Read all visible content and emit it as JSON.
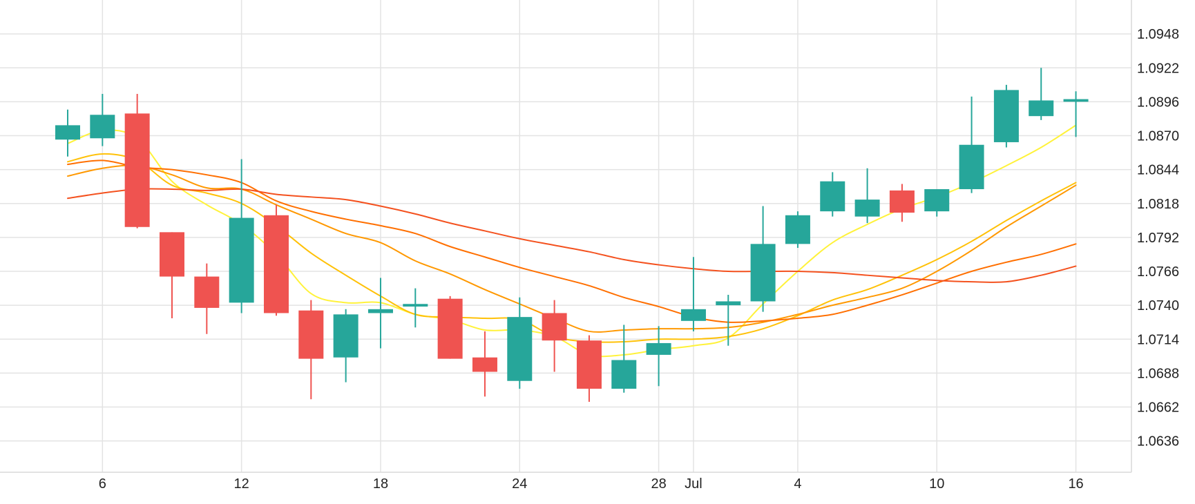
{
  "chart_data": {
    "type": "candlestick",
    "colors": {
      "up": "#26a69a",
      "down": "#ef5350",
      "grid": "#e3e3e3",
      "text": "#222222"
    },
    "y_axis": {
      "position": "right",
      "range": [
        1.0612,
        1.0974
      ],
      "ticks": [
        "1.0636",
        "1.0662",
        "1.0688",
        "1.0714",
        "1.0740",
        "1.0766",
        "1.0792",
        "1.0818",
        "1.0844",
        "1.0870",
        "1.0896",
        "1.0922",
        "1.0948"
      ]
    },
    "x_axis": {
      "tick_labels": [
        {
          "index": 1,
          "label": "6"
        },
        {
          "index": 5,
          "label": "12"
        },
        {
          "index": 9,
          "label": "18"
        },
        {
          "index": 13,
          "label": "24"
        },
        {
          "index": 17,
          "label": "28"
        },
        {
          "index": 18,
          "label": "Jul"
        },
        {
          "index": 21,
          "label": "4"
        },
        {
          "index": 25,
          "label": "10"
        },
        {
          "index": 29,
          "label": "16"
        }
      ]
    },
    "candles": [
      {
        "open": 1.0867,
        "high": 1.089,
        "low": 1.0854,
        "close": 1.0878
      },
      {
        "open": 1.0868,
        "high": 1.0902,
        "low": 1.0862,
        "close": 1.0886
      },
      {
        "open": 1.0887,
        "high": 1.0902,
        "low": 1.0799,
        "close": 1.08
      },
      {
        "open": 1.0796,
        "high": 1.0796,
        "low": 1.073,
        "close": 1.0762
      },
      {
        "open": 1.0762,
        "high": 1.0772,
        "low": 1.0718,
        "close": 1.0738
      },
      {
        "open": 1.0742,
        "high": 1.0852,
        "low": 1.0734,
        "close": 1.0807
      },
      {
        "open": 1.0809,
        "high": 1.0817,
        "low": 1.0732,
        "close": 1.0734
      },
      {
        "open": 1.0736,
        "high": 1.0744,
        "low": 1.0668,
        "close": 1.0699
      },
      {
        "open": 1.07,
        "high": 1.0737,
        "low": 1.0681,
        "close": 1.0733
      },
      {
        "open": 1.0734,
        "high": 1.0761,
        "low": 1.0707,
        "close": 1.0737
      },
      {
        "open": 1.0739,
        "high": 1.0753,
        "low": 1.0723,
        "close": 1.0741
      },
      {
        "open": 1.0745,
        "high": 1.0747,
        "low": 1.0699,
        "close": 1.0699
      },
      {
        "open": 1.07,
        "high": 1.072,
        "low": 1.067,
        "close": 1.0689
      },
      {
        "open": 1.0682,
        "high": 1.0746,
        "low": 1.0676,
        "close": 1.0731
      },
      {
        "open": 1.0734,
        "high": 1.0744,
        "low": 1.0689,
        "close": 1.0713
      },
      {
        "open": 1.0713,
        "high": 1.0717,
        "low": 1.0666,
        "close": 1.0676
      },
      {
        "open": 1.0676,
        "high": 1.0725,
        "low": 1.0673,
        "close": 1.0698
      },
      {
        "open": 1.0702,
        "high": 1.0724,
        "low": 1.0678,
        "close": 1.0711
      },
      {
        "open": 1.0728,
        "high": 1.0777,
        "low": 1.072,
        "close": 1.0737
      },
      {
        "open": 1.074,
        "high": 1.0748,
        "low": 1.0709,
        "close": 1.0743
      },
      {
        "open": 1.0743,
        "high": 1.0816,
        "low": 1.0735,
        "close": 1.0787
      },
      {
        "open": 1.0787,
        "high": 1.0812,
        "low": 1.0784,
        "close": 1.0809
      },
      {
        "open": 1.0812,
        "high": 1.0842,
        "low": 1.0808,
        "close": 1.0835
      },
      {
        "open": 1.0808,
        "high": 1.0845,
        "low": 1.0803,
        "close": 1.0821
      },
      {
        "open": 1.0828,
        "high": 1.0833,
        "low": 1.0804,
        "close": 1.0811
      },
      {
        "open": 1.0812,
        "high": 1.0829,
        "low": 1.0808,
        "close": 1.0829
      },
      {
        "open": 1.0829,
        "high": 1.09,
        "low": 1.0826,
        "close": 1.0863
      },
      {
        "open": 1.0865,
        "high": 1.0909,
        "low": 1.0861,
        "close": 1.0905
      },
      {
        "open": 1.0885,
        "high": 1.0922,
        "low": 1.0882,
        "close": 1.0897
      },
      {
        "open": 1.0896,
        "high": 1.0904,
        "low": 1.0869,
        "close": 1.0898
      }
    ],
    "moving_averages": [
      {
        "color": "#fff23a",
        "values": [
          1.0864,
          1.0874,
          1.0868,
          1.0835,
          1.0817,
          1.0802,
          1.0779,
          1.0749,
          1.0742,
          1.0742,
          1.0733,
          1.0729,
          1.0721,
          1.0721,
          1.0716,
          1.0702,
          1.0702,
          1.0706,
          1.0709,
          1.0715,
          1.0741,
          1.0766,
          1.0788,
          1.0802,
          1.0814,
          1.0823,
          1.0834,
          1.0847,
          1.0861,
          1.0878
        ]
      },
      {
        "color": "#ffc107",
        "values": [
          1.085,
          1.0856,
          1.0851,
          1.0832,
          1.0826,
          1.0818,
          1.0801,
          1.078,
          1.0763,
          1.0747,
          1.0733,
          1.0731,
          1.073,
          1.0729,
          1.0716,
          1.0712,
          1.0712,
          1.0714,
          1.0714,
          1.0716,
          1.0722,
          1.0732,
          1.0744,
          1.0752,
          1.0763,
          1.0775,
          1.0789,
          1.0805,
          1.082,
          1.0834
        ]
      },
      {
        "color": "#ff9800",
        "values": [
          1.0839,
          1.0845,
          1.0847,
          1.084,
          1.083,
          1.0829,
          1.0817,
          1.0806,
          1.0795,
          1.0788,
          1.0774,
          1.0764,
          1.0752,
          1.0741,
          1.073,
          1.072,
          1.0721,
          1.0722,
          1.0722,
          1.0723,
          1.0727,
          1.0733,
          1.074,
          1.0746,
          1.0753,
          1.0766,
          1.0782,
          1.08,
          1.0816,
          1.0832
        ]
      },
      {
        "color": "#ff6f00",
        "values": [
          1.0848,
          1.0851,
          1.0846,
          1.0844,
          1.084,
          1.0834,
          1.082,
          1.0812,
          1.0806,
          1.0801,
          1.0795,
          1.0785,
          1.0777,
          1.0769,
          1.0762,
          1.0755,
          1.0746,
          1.0739,
          1.0731,
          1.0727,
          1.0728,
          1.073,
          1.0733,
          1.074,
          1.0748,
          1.0757,
          1.0766,
          1.0773,
          1.0779,
          1.0787
        ]
      },
      {
        "color": "#f4511e",
        "values": [
          1.0822,
          1.0826,
          1.0829,
          1.0829,
          1.0828,
          1.0829,
          1.0825,
          1.0823,
          1.0821,
          1.0816,
          1.081,
          1.0803,
          1.0797,
          1.0791,
          1.0786,
          1.0781,
          1.0775,
          1.0771,
          1.0768,
          1.0766,
          1.0766,
          1.0766,
          1.0765,
          1.0763,
          1.0761,
          1.0759,
          1.0758,
          1.0758,
          1.0763,
          1.077
        ]
      }
    ]
  }
}
